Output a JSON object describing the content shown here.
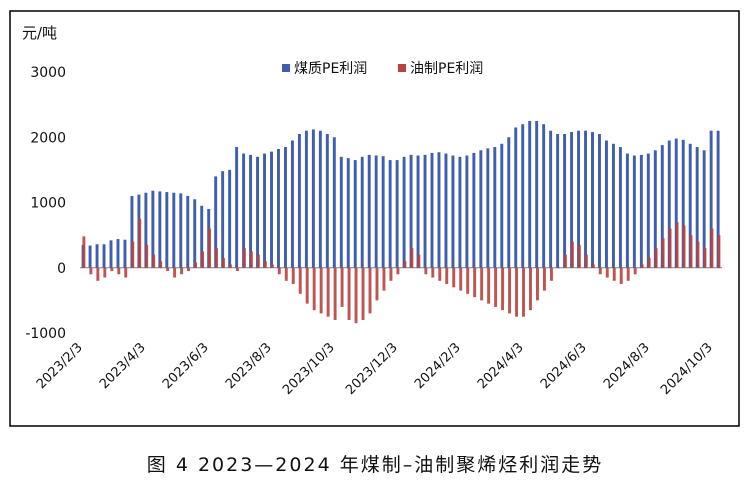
{
  "caption": "图 4  2023—2024 年煤制–油制聚烯烃利润走势",
  "colors": {
    "coal": "#3f5fae",
    "oil": "#b8423e",
    "axis": "#808080",
    "frame": "#000000"
  },
  "chart_data": {
    "type": "bar",
    "y_unit": "元/吨",
    "ylim": [
      -1000,
      3000
    ],
    "yticks": [
      -1000,
      0,
      1000,
      2000,
      3000
    ],
    "x_tick_labels": [
      "2023/2/3",
      "2023/4/3",
      "2023/6/3",
      "2023/8/3",
      "2023/10/3",
      "2023/12/3",
      "2024/2/3",
      "2024/4/3",
      "2024/6/3",
      "2024/8/3",
      "2024/10/3"
    ],
    "legend_position": "top-center",
    "series": [
      {
        "name": "煤质PE利润",
        "values": [
          350,
          340,
          360,
          360,
          420,
          440,
          430,
          1100,
          1120,
          1150,
          1180,
          1170,
          1160,
          1150,
          1140,
          1100,
          1050,
          950,
          900,
          1400,
          1480,
          1500,
          1850,
          1750,
          1730,
          1700,
          1750,
          1780,
          1820,
          1850,
          1950,
          2050,
          2100,
          2120,
          2100,
          2050,
          2000,
          1700,
          1680,
          1650,
          1700,
          1730,
          1720,
          1710,
          1650,
          1650,
          1700,
          1730,
          1720,
          1730,
          1760,
          1770,
          1750,
          1720,
          1700,
          1720,
          1760,
          1800,
          1830,
          1850,
          1900,
          2000,
          2150,
          2200,
          2250,
          2250,
          2200,
          2100,
          2050,
          2050,
          2080,
          2100,
          2100,
          2080,
          2050,
          1950,
          1900,
          1850,
          1750,
          1720,
          1730,
          1750,
          1800,
          1880,
          1950,
          1980,
          1960,
          1900,
          1850,
          1800,
          2100,
          2100
        ]
      },
      {
        "name": "油制PE利润",
        "values": [
          480,
          -100,
          -200,
          -150,
          -50,
          -100,
          -150,
          400,
          750,
          350,
          200,
          100,
          -50,
          -150,
          -100,
          -50,
          80,
          250,
          600,
          300,
          150,
          50,
          -50,
          300,
          250,
          200,
          100,
          50,
          -100,
          -200,
          -250,
          -400,
          -550,
          -650,
          -700,
          -750,
          -800,
          -600,
          -800,
          -850,
          -800,
          -700,
          -500,
          -350,
          -200,
          -100,
          100,
          300,
          200,
          -100,
          -150,
          -200,
          -250,
          -300,
          -350,
          -400,
          -450,
          -500,
          -550,
          -600,
          -650,
          -700,
          -750,
          -750,
          -650,
          -500,
          -350,
          -200,
          0,
          200,
          400,
          350,
          200,
          50,
          -100,
          -150,
          -200,
          -250,
          -200,
          -100,
          50,
          150,
          300,
          450,
          600,
          700,
          650,
          500,
          400,
          300,
          600,
          500
        ]
      }
    ]
  }
}
